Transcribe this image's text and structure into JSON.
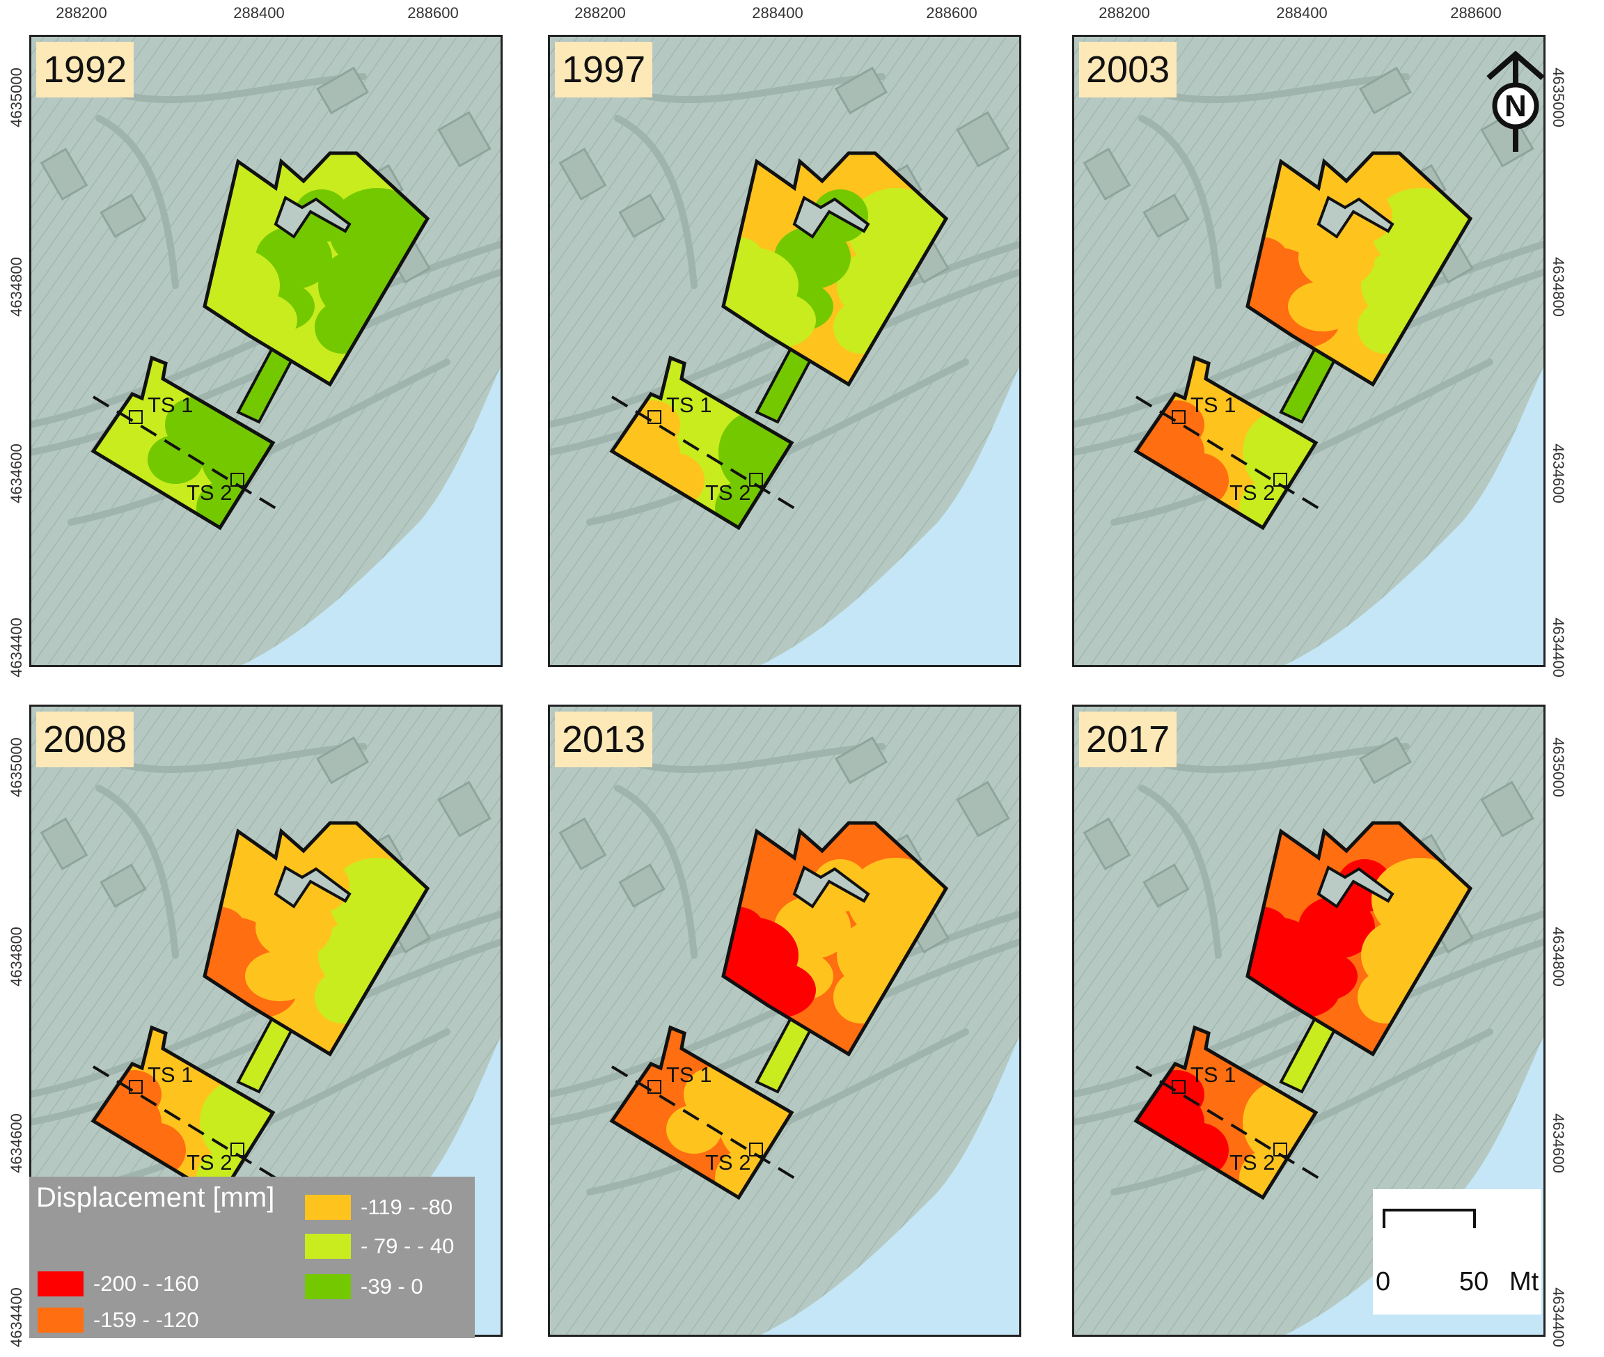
{
  "panels": [
    {
      "year": "1992",
      "stage": 0
    },
    {
      "year": "1997",
      "stage": 1
    },
    {
      "year": "2003",
      "stage": 2
    },
    {
      "year": "2008",
      "stage": 3
    },
    {
      "year": "2013",
      "stage": 4
    },
    {
      "year": "2017",
      "stage": 5
    }
  ],
  "axis": {
    "x_ticks": [
      "288200",
      "288400",
      "288600"
    ],
    "y_ticks": [
      "4635000",
      "4634800",
      "4634600",
      "4634400"
    ]
  },
  "labels": {
    "ts1": "TS 1",
    "ts2": "TS 2"
  },
  "legend": {
    "title": "Displacement [mm]",
    "classes": [
      {
        "label": "-200 - -160",
        "color": "#ff0000"
      },
      {
        "label": "-159 - -120",
        "color": "#ff6e10"
      },
      {
        "label": "-119 - -80",
        "color": "#ffc31e"
      },
      {
        "label": " - 79 - - 40",
        "color": "#c8ec1e"
      },
      {
        "label": "-39 - 0",
        "color": "#74c800"
      }
    ]
  },
  "scale": {
    "zero": "0",
    "fifty": "50",
    "unit": "Mt"
  },
  "north": {
    "letter": "N",
    "icon": "north-arrow-icon"
  },
  "colors": {
    "terrain": "#b5c9c2",
    "river": "#c4e6f6",
    "panel_border": "#222222",
    "year_bg": "#fde8b8"
  }
}
